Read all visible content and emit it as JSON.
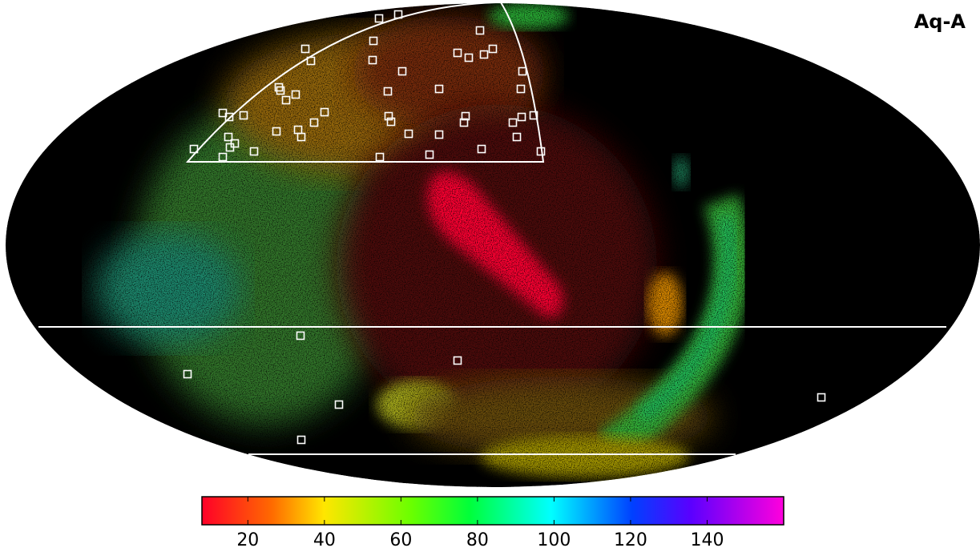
{
  "chart_data": {
    "type": "heatmap",
    "title": "Aq-A",
    "clim": [
      8,
      160
    ],
    "cticks": [
      20,
      40,
      60,
      80,
      100,
      120,
      140
    ]
  }
}
